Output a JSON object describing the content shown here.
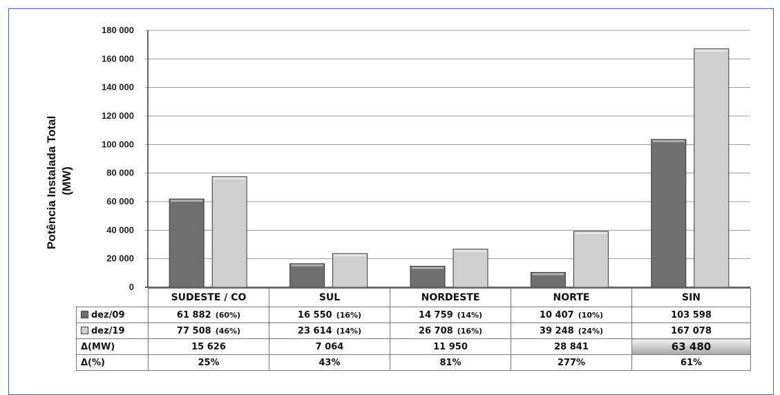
{
  "chart_data": {
    "type": "bar",
    "ylabel_line1": "Potência Instalada Total",
    "ylabel_line2": "(MW)",
    "y_ticks": [
      "180 000",
      "160 000",
      "140 000",
      "120 000",
      "100 000",
      "80 000",
      "60 000",
      "40 000",
      "20 000",
      "0"
    ],
    "ylim": [
      0,
      180000
    ],
    "grid": true,
    "categories": [
      "SUDESTE / CO",
      "SUL",
      "NORDESTE",
      "NORTE",
      "SIN"
    ],
    "series": [
      {
        "name": "dez/09",
        "values": [
          61882,
          16550,
          14759,
          10407,
          103598
        ],
        "color": "#6f6f6f"
      },
      {
        "name": "dez/19",
        "values": [
          77508,
          23614,
          26708,
          39248,
          167078
        ],
        "color": "#cfcfcf"
      }
    ],
    "table": {
      "rows": [
        {
          "label": "dez/09",
          "swatch": "dark",
          "cells": [
            {
              "value": "61 882",
              "share": "(60%)"
            },
            {
              "value": "16 550",
              "share": "(16%)"
            },
            {
              "value": "14 759",
              "share": "(14%)"
            },
            {
              "value": "10 407",
              "share": "(10%)"
            },
            {
              "value": "103 598",
              "share": ""
            }
          ]
        },
        {
          "label": "dez/19",
          "swatch": "light",
          "cells": [
            {
              "value": "77 508",
              "share": "(46%)"
            },
            {
              "value": "23 614",
              "share": "(14%)"
            },
            {
              "value": "26 708",
              "share": "(16%)"
            },
            {
              "value": "39 248",
              "share": "(24%)"
            },
            {
              "value": "167 078",
              "share": ""
            }
          ]
        },
        {
          "label": "Δ(MW)",
          "swatch": "",
          "cells": [
            {
              "value": "15 626",
              "share": ""
            },
            {
              "value": "7 064",
              "share": ""
            },
            {
              "value": "11 950",
              "share": ""
            },
            {
              "value": "28 841",
              "share": ""
            },
            {
              "value": "63 480",
              "share": "",
              "highlight": true
            }
          ]
        },
        {
          "label": "Δ(%)",
          "swatch": "",
          "cells": [
            {
              "value": "25%",
              "share": ""
            },
            {
              "value": "43%",
              "share": ""
            },
            {
              "value": "81%",
              "share": ""
            },
            {
              "value": "277%",
              "share": ""
            },
            {
              "value": "61%",
              "share": ""
            }
          ]
        }
      ]
    }
  }
}
